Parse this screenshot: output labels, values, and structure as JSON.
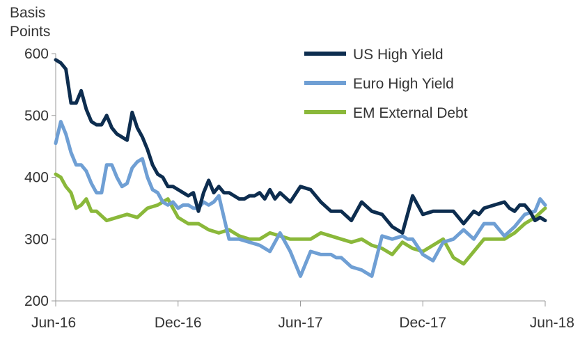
{
  "chart_data": {
    "type": "line",
    "title": "",
    "ylabel": [
      "Basis",
      "Points"
    ],
    "xlabel": "",
    "ylim": [
      200,
      600
    ],
    "yticks": [
      200,
      300,
      400,
      500,
      600
    ],
    "xlim": [
      0,
      24
    ],
    "xticks": [
      {
        "x": 0,
        "label": "Jun-16"
      },
      {
        "x": 6,
        "label": "Dec-16"
      },
      {
        "x": 12,
        "label": "Jun-17"
      },
      {
        "x": 18,
        "label": "Dec-17"
      },
      {
        "x": 24,
        "label": "Jun-18"
      }
    ],
    "legend_position": "top-right",
    "series": [
      {
        "name": "US High Yield",
        "color": "#0d2d4f",
        "x": [
          0,
          0.25,
          0.5,
          0.75,
          1.0,
          1.25,
          1.5,
          1.75,
          2.0,
          2.25,
          2.5,
          2.75,
          3.0,
          3.25,
          3.5,
          3.75,
          4.0,
          4.25,
          4.5,
          4.75,
          5.0,
          5.25,
          5.5,
          5.75,
          6.0,
          6.25,
          6.5,
          6.75,
          7.0,
          7.25,
          7.5,
          7.75,
          8.0,
          8.25,
          8.5,
          8.75,
          9.0,
          9.25,
          9.5,
          9.75,
          10.0,
          10.25,
          10.5,
          10.75,
          11.0,
          11.5,
          12.0,
          12.5,
          13.0,
          13.5,
          14.0,
          14.5,
          15.0,
          15.5,
          16.0,
          16.5,
          17.0,
          17.5,
          18.0,
          18.5,
          19.0,
          19.5,
          20.0,
          20.25,
          20.5,
          20.75,
          21.0,
          21.5,
          22.0,
          22.25,
          22.5,
          22.75,
          23.0,
          23.25,
          23.5,
          23.75,
          24.0
        ],
        "y": [
          590,
          585,
          575,
          520,
          520,
          540,
          510,
          490,
          485,
          485,
          500,
          480,
          470,
          465,
          460,
          505,
          480,
          465,
          445,
          420,
          405,
          400,
          385,
          385,
          380,
          375,
          370,
          375,
          345,
          375,
          395,
          375,
          385,
          375,
          375,
          370,
          365,
          365,
          370,
          370,
          375,
          365,
          380,
          365,
          375,
          360,
          385,
          380,
          360,
          345,
          345,
          330,
          360,
          345,
          340,
          320,
          310,
          370,
          340,
          345,
          345,
          345,
          325,
          335,
          345,
          340,
          350,
          355,
          360,
          350,
          345,
          355,
          355,
          345,
          330,
          335,
          330
        ]
      },
      {
        "name": "Euro High Yield",
        "color": "#6f9fd4",
        "x": [
          0,
          0.25,
          0.5,
          0.75,
          1.0,
          1.25,
          1.5,
          1.75,
          2.0,
          2.25,
          2.5,
          2.75,
          3.0,
          3.25,
          3.5,
          3.75,
          4.0,
          4.25,
          4.5,
          4.75,
          5.0,
          5.25,
          5.5,
          5.75,
          6.0,
          6.25,
          6.5,
          6.75,
          7.0,
          7.25,
          7.5,
          7.75,
          8.0,
          8.5,
          9.0,
          9.5,
          10.0,
          10.5,
          11.0,
          11.5,
          12.0,
          12.5,
          13.0,
          13.5,
          13.75,
          14.0,
          14.5,
          15.0,
          15.5,
          16.0,
          16.5,
          17.0,
          17.25,
          17.5,
          18.0,
          18.5,
          19.0,
          19.5,
          20.0,
          20.5,
          21.0,
          21.5,
          22.0,
          22.5,
          23.0,
          23.5,
          23.75,
          24.0
        ],
        "y": [
          455,
          490,
          470,
          440,
          420,
          420,
          410,
          390,
          375,
          375,
          420,
          420,
          400,
          385,
          390,
          415,
          425,
          430,
          400,
          380,
          375,
          360,
          355,
          360,
          350,
          355,
          355,
          350,
          350,
          360,
          355,
          360,
          370,
          300,
          300,
          295,
          290,
          280,
          310,
          280,
          240,
          280,
          275,
          275,
          270,
          270,
          255,
          250,
          240,
          305,
          300,
          305,
          300,
          300,
          275,
          265,
          295,
          300,
          315,
          300,
          325,
          325,
          305,
          320,
          340,
          345,
          365,
          355
        ]
      },
      {
        "name": "EM External Debt",
        "color": "#8ab83a",
        "x": [
          0,
          0.25,
          0.5,
          0.75,
          1.0,
          1.25,
          1.5,
          1.75,
          2.0,
          2.5,
          3.0,
          3.5,
          4.0,
          4.5,
          5.0,
          5.5,
          6.0,
          6.5,
          7.0,
          7.5,
          8.0,
          8.5,
          9.0,
          9.5,
          10.0,
          10.5,
          11.0,
          11.5,
          12.0,
          12.5,
          13.0,
          13.5,
          14.0,
          14.5,
          15.0,
          15.5,
          16.0,
          16.5,
          17.0,
          17.5,
          18.0,
          18.5,
          19.0,
          19.5,
          20.0,
          20.5,
          21.0,
          21.5,
          22.0,
          22.5,
          23.0,
          23.5,
          24.0
        ],
        "y": [
          405,
          400,
          385,
          375,
          350,
          355,
          365,
          345,
          345,
          330,
          335,
          340,
          335,
          350,
          355,
          365,
          335,
          325,
          325,
          315,
          310,
          315,
          305,
          300,
          300,
          310,
          305,
          300,
          300,
          300,
          310,
          305,
          300,
          295,
          300,
          290,
          285,
          275,
          295,
          285,
          280,
          290,
          300,
          270,
          260,
          280,
          300,
          300,
          300,
          310,
          325,
          335,
          350
        ]
      }
    ]
  }
}
